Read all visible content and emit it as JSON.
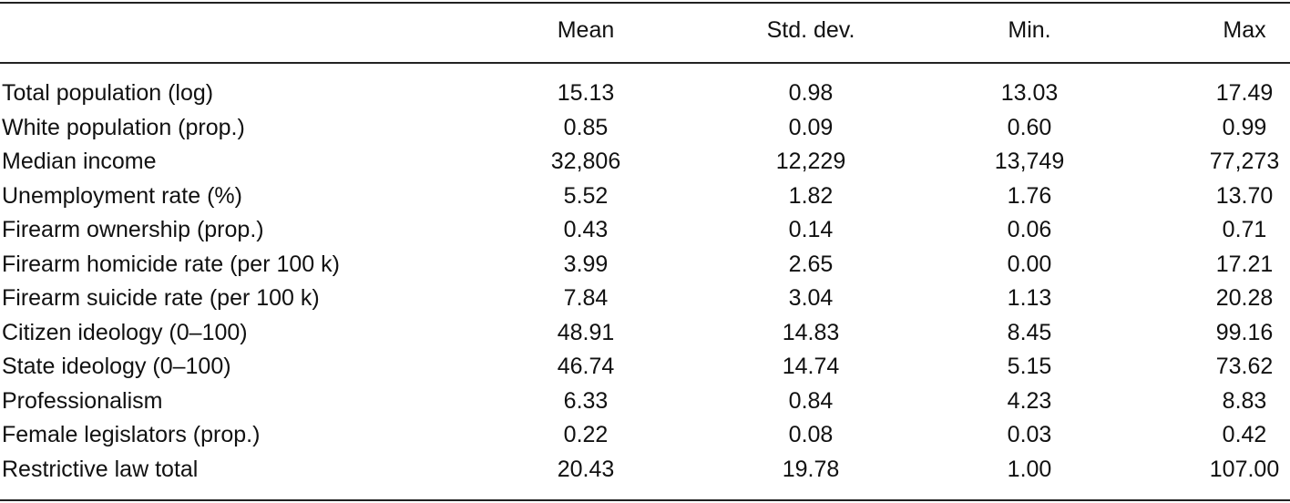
{
  "table": {
    "columns": [
      "Mean",
      "Std. dev.",
      "Min.",
      "Max"
    ],
    "rows": [
      [
        "Total population (log)",
        "15.13",
        "0.98",
        "13.03",
        "17.49"
      ],
      [
        "White population (prop.)",
        "0.85",
        "0.09",
        "0.60",
        "0.99"
      ],
      [
        "Median income",
        "32,806",
        "12,229",
        "13,749",
        "77,273"
      ],
      [
        "Unemployment rate (%)",
        "5.52",
        "1.82",
        "1.76",
        "13.70"
      ],
      [
        "Firearm ownership (prop.)",
        "0.43",
        "0.14",
        "0.06",
        "0.71"
      ],
      [
        "Firearm homicide rate (per 100 k)",
        "3.99",
        "2.65",
        "0.00",
        "17.21"
      ],
      [
        "Firearm suicide rate (per 100 k)",
        "7.84",
        "3.04",
        "1.13",
        "20.28"
      ],
      [
        "Citizen ideology (0–100)",
        "48.91",
        "14.83",
        "8.45",
        "99.16"
      ],
      [
        "State ideology (0–100)",
        "46.74",
        "14.74",
        "5.15",
        "73.62"
      ],
      [
        "Professionalism",
        "6.33",
        "0.84",
        "4.23",
        "8.83"
      ],
      [
        "Female legislators (prop.)",
        "0.22",
        "0.08",
        "0.03",
        "0.42"
      ],
      [
        "Restrictive law total",
        "20.43",
        "19.78",
        "1.00",
        "107.00"
      ]
    ]
  }
}
